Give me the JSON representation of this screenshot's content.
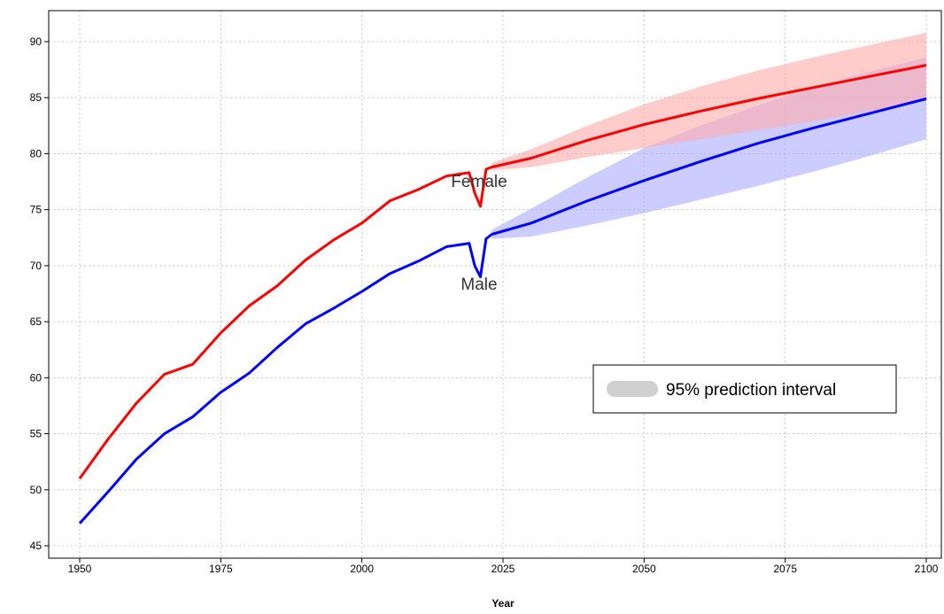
{
  "chart_data": {
    "type": "line",
    "title": "",
    "xlabel": "Year",
    "ylabel": "",
    "xlim": [
      1950,
      2100
    ],
    "ylim": [
      45,
      92
    ],
    "x_ticks": [
      1950,
      1975,
      2000,
      2025,
      2050,
      2075,
      2100
    ],
    "y_ticks": [
      45,
      50,
      55,
      60,
      65,
      70,
      75,
      80,
      85,
      90
    ],
    "grid": true,
    "legend": {
      "position": "center-right",
      "entries": [
        "95% prediction interval"
      ],
      "swatch_color": "#d0d0d0"
    },
    "series": [
      {
        "name": "Female",
        "color": "#ff0000",
        "band_color": "#ffaaaa",
        "observed": [
          [
            1950,
            51.0
          ],
          [
            1955,
            54.5
          ],
          [
            1960,
            57.7
          ],
          [
            1965,
            60.3
          ],
          [
            1970,
            61.2
          ],
          [
            1975,
            64.0
          ],
          [
            1980,
            66.4
          ],
          [
            1985,
            68.2
          ],
          [
            1990,
            70.5
          ],
          [
            1995,
            72.3
          ],
          [
            2000,
            73.8
          ],
          [
            2005,
            75.8
          ],
          [
            2010,
            76.8
          ],
          [
            2015,
            78.0
          ],
          [
            2019,
            78.3
          ],
          [
            2020,
            76.5
          ],
          [
            2021,
            75.3
          ],
          [
            2022,
            78.6
          ]
        ],
        "projection": [
          [
            2023,
            78.8
          ],
          [
            2030,
            79.6
          ],
          [
            2040,
            81.2
          ],
          [
            2050,
            82.6
          ],
          [
            2060,
            83.8
          ],
          [
            2070,
            84.9
          ],
          [
            2080,
            85.9
          ],
          [
            2090,
            86.9
          ],
          [
            2100,
            87.9
          ]
        ],
        "lower": [
          [
            2023,
            78.5
          ],
          [
            2030,
            78.8
          ],
          [
            2040,
            79.7
          ],
          [
            2050,
            80.5
          ],
          [
            2060,
            81.3
          ],
          [
            2070,
            82.1
          ],
          [
            2080,
            82.9
          ],
          [
            2090,
            83.8
          ],
          [
            2100,
            84.8
          ]
        ],
        "upper": [
          [
            2023,
            79.2
          ],
          [
            2030,
            80.4
          ],
          [
            2040,
            82.5
          ],
          [
            2050,
            84.4
          ],
          [
            2060,
            86.0
          ],
          [
            2070,
            87.4
          ],
          [
            2080,
            88.6
          ],
          [
            2090,
            89.7
          ],
          [
            2100,
            90.8
          ]
        ]
      },
      {
        "name": "Male",
        "color": "#0000ff",
        "band_color": "#aaaaff",
        "observed": [
          [
            1950,
            47.0
          ],
          [
            1955,
            49.8
          ],
          [
            1960,
            52.7
          ],
          [
            1965,
            55.0
          ],
          [
            1970,
            56.5
          ],
          [
            1975,
            58.7
          ],
          [
            1980,
            60.4
          ],
          [
            1985,
            62.7
          ],
          [
            1990,
            64.8
          ],
          [
            1995,
            66.2
          ],
          [
            2000,
            67.7
          ],
          [
            2005,
            69.3
          ],
          [
            2010,
            70.4
          ],
          [
            2015,
            71.7
          ],
          [
            2019,
            72.0
          ],
          [
            2020,
            70.0
          ],
          [
            2021,
            69.0
          ],
          [
            2022,
            72.4
          ]
        ],
        "projection": [
          [
            2023,
            72.8
          ],
          [
            2030,
            73.8
          ],
          [
            2040,
            75.8
          ],
          [
            2050,
            77.6
          ],
          [
            2060,
            79.3
          ],
          [
            2070,
            80.9
          ],
          [
            2080,
            82.3
          ],
          [
            2090,
            83.6
          ],
          [
            2100,
            84.9
          ]
        ],
        "lower": [
          [
            2023,
            72.4
          ],
          [
            2030,
            72.6
          ],
          [
            2040,
            73.6
          ],
          [
            2050,
            74.7
          ],
          [
            2060,
            75.9
          ],
          [
            2070,
            77.1
          ],
          [
            2080,
            78.4
          ],
          [
            2090,
            79.8
          ],
          [
            2100,
            81.3
          ]
        ],
        "upper": [
          [
            2023,
            73.2
          ],
          [
            2030,
            75.1
          ],
          [
            2040,
            77.9
          ],
          [
            2050,
            80.5
          ],
          [
            2060,
            82.5
          ],
          [
            2070,
            84.3
          ],
          [
            2080,
            85.9
          ],
          [
            2090,
            87.3
          ],
          [
            2100,
            88.6
          ]
        ]
      }
    ]
  }
}
